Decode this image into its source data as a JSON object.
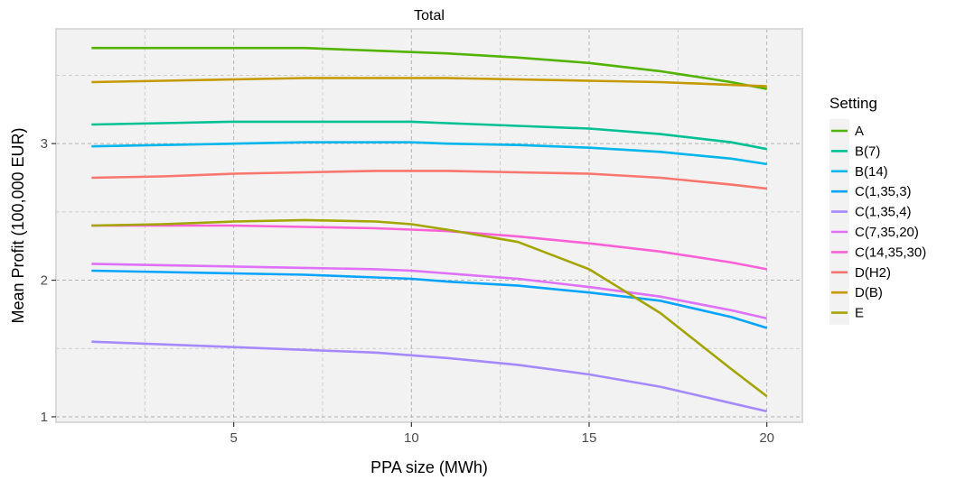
{
  "chart_data": {
    "type": "line",
    "title": "Total",
    "xlabel": "PPA size (MWh)",
    "ylabel": "Mean Profit (100,000 EUR)",
    "xlim": [
      0.0,
      21.0
    ],
    "ylim": [
      0.96,
      3.84
    ],
    "x_ticks": [
      5,
      10,
      15,
      20
    ],
    "x_tick_labels": [
      "5",
      "10",
      "15",
      "20"
    ],
    "y_ticks": [
      1,
      2,
      3
    ],
    "y_tick_labels": [
      "1",
      "2",
      "3"
    ],
    "grid": true,
    "legend_title": "Setting",
    "legend_position": "right",
    "x": [
      1,
      3,
      5,
      7,
      9,
      10,
      11,
      13,
      15,
      17,
      19,
      20
    ],
    "series": [
      {
        "name": "A",
        "color": "#53B400",
        "values": [
          3.7,
          3.7,
          3.7,
          3.7,
          3.68,
          3.67,
          3.66,
          3.63,
          3.59,
          3.53,
          3.45,
          3.4
        ]
      },
      {
        "name": "B(7)",
        "color": "#00C094",
        "values": [
          3.14,
          3.15,
          3.16,
          3.16,
          3.16,
          3.16,
          3.15,
          3.13,
          3.11,
          3.07,
          3.01,
          2.96
        ]
      },
      {
        "name": "B(14)",
        "color": "#00B6EB",
        "values": [
          2.98,
          2.99,
          3.0,
          3.01,
          3.01,
          3.01,
          3.0,
          2.99,
          2.97,
          2.94,
          2.89,
          2.85
        ]
      },
      {
        "name": "C(1,35,3)",
        "color": "#06A4FF",
        "values": [
          2.07,
          2.06,
          2.05,
          2.04,
          2.02,
          2.01,
          1.99,
          1.96,
          1.91,
          1.85,
          1.73,
          1.65
        ]
      },
      {
        "name": "C(1,35,4)",
        "color": "#A58AFF",
        "values": [
          1.55,
          1.53,
          1.51,
          1.49,
          1.47,
          1.45,
          1.43,
          1.38,
          1.31,
          1.22,
          1.1,
          1.04
        ]
      },
      {
        "name": "C(7,35,20)",
        "color": "#DF70F8",
        "values": [
          2.12,
          2.11,
          2.1,
          2.09,
          2.08,
          2.07,
          2.05,
          2.01,
          1.95,
          1.88,
          1.78,
          1.72
        ]
      },
      {
        "name": "C(14,35,30)",
        "color": "#FB61D7",
        "values": [
          2.4,
          2.4,
          2.4,
          2.39,
          2.38,
          2.37,
          2.36,
          2.32,
          2.27,
          2.21,
          2.13,
          2.08
        ]
      },
      {
        "name": "D(H2)",
        "color": "#F8766D",
        "values": [
          2.75,
          2.76,
          2.78,
          2.79,
          2.8,
          2.8,
          2.8,
          2.79,
          2.78,
          2.75,
          2.7,
          2.67
        ]
      },
      {
        "name": "D(B)",
        "color": "#C49A00",
        "values": [
          3.45,
          3.46,
          3.47,
          3.48,
          3.48,
          3.48,
          3.48,
          3.47,
          3.46,
          3.45,
          3.43,
          3.42
        ]
      },
      {
        "name": "E",
        "color": "#A3A500",
        "values": [
          2.4,
          2.41,
          2.43,
          2.44,
          2.43,
          2.41,
          2.37,
          2.28,
          2.08,
          1.76,
          1.35,
          1.15
        ]
      }
    ]
  }
}
